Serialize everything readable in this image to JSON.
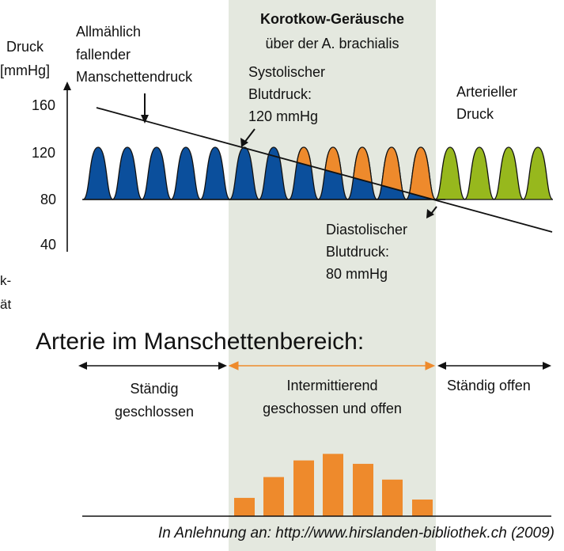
{
  "y_axis": {
    "title_line1": "Druck",
    "title_line2": "[mmHg]",
    "ticks": [
      "160",
      "120",
      "80",
      "40"
    ]
  },
  "labels": {
    "cuff_pressure": [
      "Allmählich",
      "fallender",
      "Manschettendruck"
    ],
    "korotkoff_title": "Korotkow-Geräusche",
    "korotkoff_subtitle": "über der A. brachialis",
    "systolic": [
      "Systolischer",
      "Blutdruck:",
      "120 mmHg"
    ],
    "diastolic": [
      "Diastolischer",
      "Blutdruck:",
      "80 mmHg"
    ],
    "arterial": [
      "Arterieller",
      "Druck"
    ],
    "cut_left": [
      "k-",
      "ät"
    ]
  },
  "artery_section": {
    "title": "Arterie im Manschettenbereich:",
    "left": [
      "Ständig",
      "geschlossen"
    ],
    "middle": [
      "Intermittierend",
      "geschossen und offen"
    ],
    "right": "Ständig offen"
  },
  "sound_intensity_bars": [
    0.22,
    0.47,
    0.67,
    0.75,
    0.63,
    0.44,
    0.2
  ],
  "caption": "In Anlehnung an: http://www.hirslanden-bibliothek.ch (2009)",
  "colors": {
    "band": "#e4e8df",
    "pulse_blue": "#0b4f9c",
    "pulse_orange": "#ee8a2c",
    "pulse_green": "#97b81d",
    "arrow_orange": "#ee8a2c",
    "bars": "#ee8a2c"
  }
}
